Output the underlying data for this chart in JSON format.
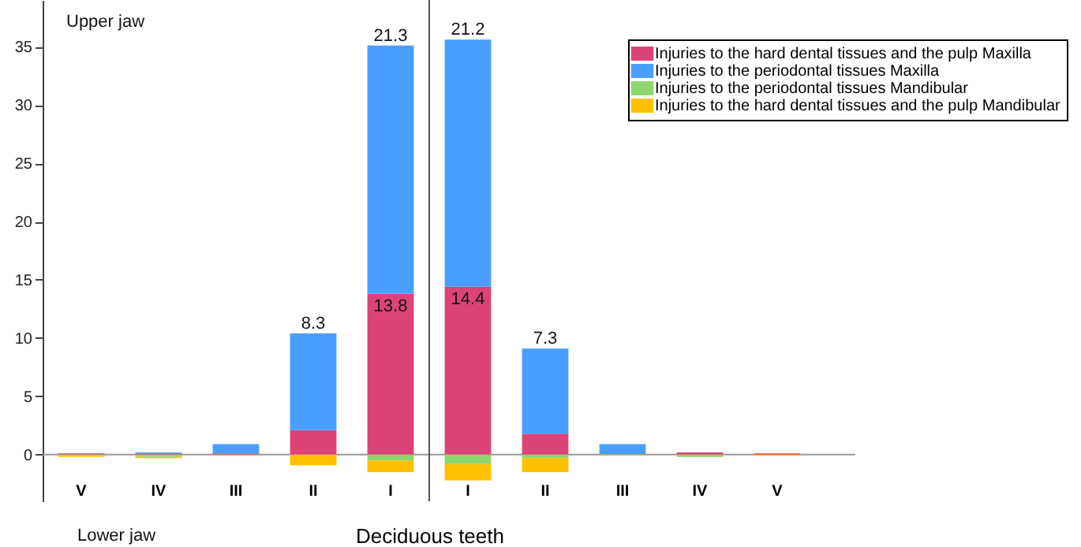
{
  "chart_data": {
    "type": "bar",
    "stacked": true,
    "xlabel": "Deciduous teeth",
    "categories": [
      "V",
      "IV",
      "III",
      "II",
      "I",
      "I",
      "II",
      "III",
      "IV",
      "V"
    ],
    "series": [
      {
        "name": "Injuries to the hard dental tissues and the pulp Maxilla",
        "color": "#dc4378",
        "values": [
          0.1,
          0.1,
          0.1,
          2.1,
          13.8,
          14.4,
          1.8,
          0,
          0.2,
          0.1
        ],
        "value_labels": [
          null,
          null,
          null,
          null,
          "13.8",
          "14.4",
          null,
          null,
          null,
          null
        ]
      },
      {
        "name": "Injuries to the periodontal tissues Maxilla",
        "color": "#4a9eff",
        "values": [
          0,
          0.1,
          0.8,
          8.3,
          21.3,
          21.2,
          7.3,
          0.9,
          0,
          0
        ],
        "value_labels": [
          null,
          null,
          null,
          "8.3",
          "21.3",
          "21.2",
          "7.3",
          null,
          null,
          null
        ]
      },
      {
        "name": "Injuries to the periodontal tissues Mandibular",
        "color": "#8ed66f",
        "values": [
          -0.1,
          -0.2,
          -0.1,
          0,
          -0.5,
          -0.8,
          -0.3,
          0,
          -0.2,
          0
        ]
      },
      {
        "name": "Injuries to the hard dental tissues and the pulp Mandibular",
        "color": "#ffc000",
        "values": [
          -0.1,
          -0.1,
          0,
          -0.9,
          -1.0,
          -1.4,
          -1.2,
          -0.1,
          0,
          -0.1
        ]
      }
    ],
    "ylim": [
      -4,
      39
    ],
    "yticks": [
      0,
      5,
      10,
      15,
      20,
      25,
      30,
      35
    ],
    "grid": false,
    "legend": "top right",
    "annotations": [
      "Upper jaw",
      "Lower jaw"
    ]
  }
}
